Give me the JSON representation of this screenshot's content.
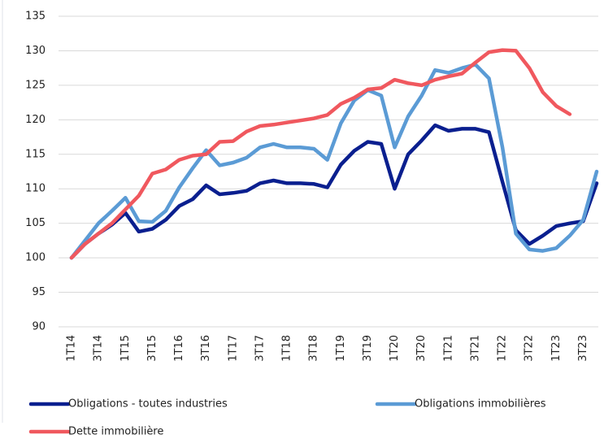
{
  "chart_data": {
    "type": "line",
    "categories": [
      "1T14",
      null,
      "3T14",
      null,
      "1T15",
      null,
      "3T15",
      null,
      "1T16",
      null,
      "3T16",
      null,
      "1T17",
      null,
      "3T17",
      null,
      "1T18",
      null,
      "3T18",
      null,
      "1T19",
      null,
      "3T19",
      null,
      "1T20",
      null,
      "3T20",
      null,
      "1T21",
      null,
      "3T21",
      null,
      "1T22",
      null,
      "3T22",
      null,
      "1T23",
      null,
      "3T23",
      null
    ],
    "series": [
      {
        "name": "Obligations - toutes industries",
        "color": "#0a1f8f",
        "values": [
          100,
          102,
          103.5,
          104.8,
          106.5,
          103.8,
          104.2,
          105.5,
          107.5,
          108.5,
          110.5,
          109.2,
          109.4,
          109.7,
          110.8,
          111.2,
          110.8,
          110.8,
          110.7,
          110.2,
          113.5,
          115.5,
          116.8,
          116.5,
          110,
          115,
          117,
          119.2,
          118.4,
          118.7,
          118.7,
          118.2,
          111,
          104,
          102,
          103.2,
          104.6,
          105,
          105.3,
          110.8
        ]
      },
      {
        "name": "Obligations immobilières",
        "color": "#5b9bd5",
        "values": [
          100,
          102.5,
          105,
          106.8,
          108.7,
          105.3,
          105.2,
          106.8,
          110.2,
          113,
          115.6,
          113.4,
          113.8,
          114.5,
          116,
          116.5,
          116,
          116,
          115.8,
          114.2,
          119.5,
          122.8,
          124.3,
          123.5,
          116,
          120.5,
          123.5,
          127.2,
          126.8,
          127.5,
          128,
          126,
          116,
          103.5,
          101.2,
          101,
          101.4,
          103.2,
          105.5,
          112.5
        ]
      },
      {
        "name": "Dette immobilière",
        "color": "#f0585e",
        "values": [
          100,
          102,
          103.5,
          105,
          107,
          109,
          112.2,
          112.8,
          114.2,
          114.8,
          115,
          116.8,
          116.9,
          118.3,
          119.1,
          119.3,
          119.6,
          119.9,
          120.2,
          120.7,
          122.3,
          123.2,
          124.4,
          124.6,
          125.8,
          125.3,
          125,
          125.8,
          126.3,
          126.7,
          128.3,
          129.8,
          130.1,
          130,
          127.5,
          124,
          122,
          120.8,
          null,
          null
        ]
      }
    ],
    "ylim": [
      90,
      135
    ],
    "yticks": [
      90,
      95,
      100,
      105,
      110,
      115,
      120,
      125,
      130,
      135
    ],
    "grid": true
  }
}
